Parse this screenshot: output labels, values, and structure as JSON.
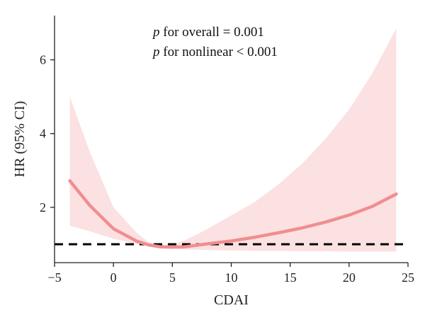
{
  "chart_data": {
    "type": "line",
    "xlabel": "CDAI",
    "ylabel": "HR (95% CI)",
    "xlim": [
      -5,
      25
    ],
    "ylim": [
      0.5,
      7.2
    ],
    "xticks": [
      -5,
      0,
      5,
      10,
      15,
      20,
      25
    ],
    "xtick_labels": [
      "−5",
      "0",
      "5",
      "10",
      "15",
      "20",
      "25"
    ],
    "yticks": [
      2,
      4,
      6
    ],
    "ytick_labels": [
      "2",
      "4",
      "6"
    ],
    "reference_line": {
      "y": 1,
      "style": "dashed",
      "color": "#000000"
    },
    "annotations": [
      {
        "italic_prefix": "p",
        "text": " for overall = 0.001"
      },
      {
        "italic_prefix": "p",
        "text": " for nonlinear < 0.001"
      }
    ],
    "series": [
      {
        "x": [
          -3.7,
          -2,
          0,
          2,
          3,
          4,
          5,
          6,
          7,
          8,
          10,
          12,
          14,
          16,
          18,
          20,
          22,
          24
        ],
        "hr": [
          2.72,
          2.05,
          1.42,
          1.08,
          0.98,
          0.93,
          0.92,
          0.93,
          0.97,
          1.01,
          1.09,
          1.19,
          1.31,
          1.44,
          1.6,
          1.79,
          2.03,
          2.36
        ],
        "ci_lower": [
          1.5,
          1.35,
          1.15,
          1.0,
          0.95,
          0.9,
          0.88,
          0.86,
          0.85,
          0.84,
          0.83,
          0.82,
          0.82,
          0.81,
          0.81,
          0.8,
          0.8,
          0.8
        ],
        "ci_upper": [
          5.0,
          3.5,
          2.0,
          1.3,
          1.05,
          0.98,
          1.0,
          1.1,
          1.25,
          1.42,
          1.78,
          2.15,
          2.62,
          3.18,
          3.86,
          4.65,
          5.65,
          6.85
        ]
      }
    ],
    "colors": {
      "line": "#f08e90",
      "band": "#fbe1e2",
      "ref": "#000000",
      "axis": "#222222"
    },
    "grid": false,
    "legend": "none"
  }
}
